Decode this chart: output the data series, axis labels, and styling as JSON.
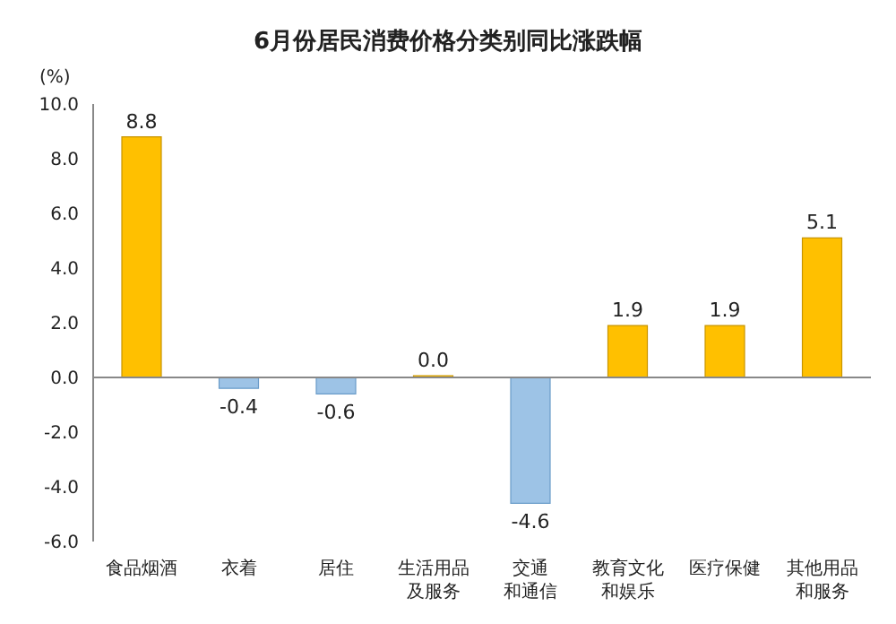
{
  "chart_data": {
    "type": "bar",
    "title": "6月份居民消费价格分类别同比涨跌幅",
    "ylabel": "(%)",
    "categories": [
      "食品烟酒",
      "衣着",
      "居住",
      "生活用品及服务",
      "交通和通信",
      "教育文化和娱乐",
      "医疗保健",
      "其他用品和服务"
    ],
    "values": [
      8.8,
      -0.4,
      -0.6,
      0,
      -4.6,
      1.9,
      1.9,
      5.1
    ],
    "colors": [
      "#ffc000",
      "#9dc3e6",
      "#9dc3e6",
      "#ffc000",
      "#9dc3e6",
      "#ffc000",
      "#ffc000",
      "#ffc000"
    ],
    "value_labels": [
      "8.8",
      "-0.4",
      "-0.6",
      "0.0",
      "-4.6",
      "1.9",
      "1.9",
      "5.1"
    ],
    "ylim": [
      -6,
      10
    ],
    "yticks": [
      {
        "value": -6,
        "label": "-6.0"
      },
      {
        "value": -4,
        "label": "-4.0"
      },
      {
        "value": -2,
        "label": "-2.0"
      },
      {
        "value": 0,
        "label": "0.0"
      },
      {
        "value": 2,
        "label": "2.0"
      },
      {
        "value": 4,
        "label": "4.0"
      },
      {
        "value": 6,
        "label": "6.0"
      },
      {
        "value": 8,
        "label": "8.0"
      },
      {
        "value": 10,
        "label": "10.0"
      }
    ]
  }
}
